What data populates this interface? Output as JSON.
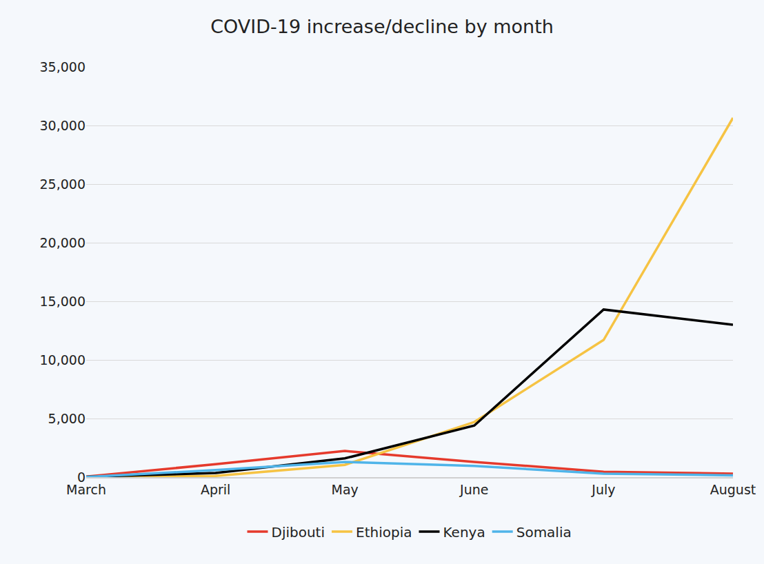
{
  "chart_data": {
    "type": "line",
    "title": "COVID-19 increase/decline by month",
    "categories": [
      "March",
      "April",
      "May",
      "June",
      "July",
      "August"
    ],
    "series": [
      {
        "name": "Djibouti",
        "color": "#e53a2c",
        "values": [
          50,
          1100,
          2230,
          1300,
          450,
          300
        ]
      },
      {
        "name": "Ethiopia",
        "color": "#f6c343",
        "values": [
          20,
          100,
          1050,
          4700,
          11700,
          30650
        ]
      },
      {
        "name": "Kenya",
        "color": "#000000",
        "values": [
          30,
          350,
          1600,
          4400,
          14300,
          13000
        ]
      },
      {
        "name": "Somalia",
        "color": "#4fb4e9",
        "values": [
          10,
          600,
          1300,
          950,
          300,
          150
        ]
      }
    ],
    "ylim": [
      0,
      35000
    ],
    "yticks": [
      0,
      {
        "value": 5000,
        "label": "5,000"
      },
      {
        "value": 10000,
        "label": "10,000"
      },
      {
        "value": 15000,
        "label": "15,000"
      },
      {
        "value": 20000,
        "label": "20,000"
      },
      {
        "value": 25000,
        "label": "25,000"
      },
      {
        "value": 30000,
        "label": "30,000"
      },
      {
        "value": 35000,
        "label": "35,000"
      }
    ],
    "grid": true,
    "legend": "bottom"
  }
}
